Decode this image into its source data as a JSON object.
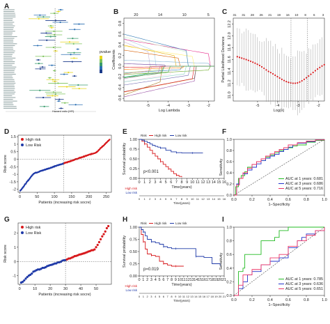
{
  "figure": {
    "panel_labels": [
      "A",
      "B",
      "C",
      "D",
      "E",
      "F",
      "G",
      "H",
      "I"
    ]
  },
  "panel_a": {
    "legend_title": "pvalue",
    "xlabel": "Hazard ratio (HR)"
  },
  "chart_data": [
    {
      "panel": "B",
      "type": "line",
      "xlabel": "Log Lambda",
      "ylabel": "Coefficients",
      "xlim": [
        -6.2,
        -1.7
      ],
      "ylim": [
        -0.65,
        0.9
      ],
      "top_ticks": [
        "20",
        "14",
        "10",
        "5"
      ],
      "x_ticks": [
        "-5",
        "-4",
        "-3",
        "-2"
      ],
      "y_ticks": [
        "-0.6",
        "-0.4",
        "-0.2",
        "0.0",
        "0.2",
        "0.4",
        "0.6",
        "0.8"
      ]
    },
    {
      "panel": "C",
      "type": "scatter",
      "xlabel": "Log(λ)",
      "ylabel": "Partial Likelihood Deviance",
      "xlim": [
        -6.2,
        -1.7
      ],
      "ylim": [
        10.9,
        12.3
      ],
      "top_ticks": [
        "31",
        "31",
        "28",
        "26",
        "21",
        "19",
        "16",
        "10",
        "8",
        "6",
        "3"
      ],
      "x_ticks": [
        "-5",
        "-4",
        "-3",
        "-2"
      ],
      "y_ticks": [
        "11.0",
        "11.2",
        "11.4",
        "11.6",
        "11.8",
        "12.0",
        "12.2"
      ],
      "vlines": [
        -3.35,
        -2.55
      ]
    },
    {
      "panel": "D",
      "type": "scatter",
      "xlabel": "Patients (increasing risk socre)",
      "ylabel": "Risk score",
      "xlim": [
        -5,
        265
      ],
      "ylim": [
        -2.2,
        1.6
      ],
      "x_ticks": [
        "0",
        "50",
        "100",
        "150",
        "200",
        "250"
      ],
      "y_ticks": [
        "-2",
        "-1.5",
        "-1",
        "-0.5",
        "0",
        "0.5",
        "1",
        "1.5"
      ],
      "cutoff_x": 127,
      "cutoff_y": 0,
      "legend": [
        "High risk",
        "Low Risk"
      ]
    },
    {
      "panel": "E",
      "type": "line",
      "xlabel": "Time(years)",
      "ylabel": "Survival probability",
      "xlim": [
        0,
        16
      ],
      "ylim": [
        0,
        1
      ],
      "x_ticks": [
        "0",
        "1",
        "2",
        "3",
        "4",
        "5",
        "6",
        "7",
        "8",
        "9",
        "10",
        "11",
        "12",
        "13",
        "14",
        "15",
        "16"
      ],
      "y_ticks": [
        "0.00",
        "0.25",
        "0.50",
        "0.75",
        "1.00"
      ],
      "legend_title": "Risk",
      "legend": [
        "High risk",
        "Low risk"
      ],
      "pvalue_text": "p<0.001",
      "series": [
        {
          "name": "High risk",
          "x": [
            0,
            0.5,
            1,
            1.5,
            2,
            2.5,
            3,
            3.5,
            4,
            4.5,
            5,
            5.5,
            6,
            6.5,
            7,
            7.5,
            8
          ],
          "y": [
            1,
            0.95,
            0.88,
            0.8,
            0.72,
            0.64,
            0.57,
            0.5,
            0.43,
            0.36,
            0.3,
            0.24,
            0.18,
            0.12,
            0.08,
            0.05,
            0.03
          ]
        },
        {
          "name": "Low risk",
          "x": [
            0,
            0.5,
            1,
            1.5,
            2,
            2.5,
            3,
            3.5,
            4,
            5,
            6,
            7,
            8,
            9,
            10,
            11,
            12
          ],
          "y": [
            1,
            0.98,
            0.95,
            0.92,
            0.88,
            0.85,
            0.82,
            0.8,
            0.78,
            0.72,
            0.68,
            0.66,
            0.65,
            0.65,
            0.65,
            0.65,
            0.65
          ]
        }
      ],
      "risk_table_x_ticks": [
        "0",
        "1",
        "2",
        "3",
        "4",
        "5",
        "6",
        "7",
        "8",
        "9",
        "10",
        "11",
        "12",
        "13",
        "14",
        "15",
        "16"
      ],
      "risk_table_xlabel": "Time(years)",
      "risk_table_labels": [
        "High risk",
        "Low risk"
      ]
    },
    {
      "panel": "F",
      "type": "line",
      "xlabel": "1−Specificity",
      "ylabel": "Sensitivity",
      "xlim": [
        0,
        1
      ],
      "ylim": [
        0,
        1
      ],
      "x_ticks": [
        "0.0",
        "0.2",
        "0.4",
        "0.6",
        "0.8",
        "1.0"
      ],
      "y_ticks": [
        "0.0",
        "0.2",
        "0.4",
        "0.6",
        "0.8",
        "1.0"
      ],
      "series": [
        {
          "name": "AUC at 1 years: 0.681",
          "x": [
            0,
            0.02,
            0.05,
            0.08,
            0.12,
            0.15,
            0.2,
            0.25,
            0.3,
            0.35,
            0.4,
            0.45,
            0.5,
            0.55,
            0.6,
            0.65,
            0.7,
            0.8,
            0.9,
            1
          ],
          "y": [
            0,
            0.15,
            0.3,
            0.35,
            0.42,
            0.5,
            0.55,
            0.6,
            0.62,
            0.68,
            0.72,
            0.76,
            0.8,
            0.82,
            0.85,
            0.88,
            0.9,
            0.95,
            0.98,
            1
          ]
        },
        {
          "name": "AUC at 3 years: 0.686",
          "x": [
            0,
            0.03,
            0.06,
            0.1,
            0.15,
            0.2,
            0.25,
            0.3,
            0.35,
            0.4,
            0.45,
            0.5,
            0.55,
            0.6,
            0.65,
            0.7,
            0.8,
            0.9,
            1
          ],
          "y": [
            0,
            0.2,
            0.3,
            0.38,
            0.45,
            0.5,
            0.56,
            0.62,
            0.66,
            0.7,
            0.73,
            0.78,
            0.82,
            0.86,
            0.9,
            0.93,
            0.96,
            0.99,
            1
          ]
        },
        {
          "name": "AUC at 5 years: 0.716",
          "x": [
            0,
            0.03,
            0.06,
            0.1,
            0.15,
            0.2,
            0.25,
            0.3,
            0.35,
            0.4,
            0.45,
            0.5,
            0.55,
            0.6,
            0.7,
            0.8,
            0.9,
            1
          ],
          "y": [
            0,
            0.18,
            0.3,
            0.4,
            0.48,
            0.55,
            0.6,
            0.65,
            0.7,
            0.74,
            0.78,
            0.82,
            0.85,
            0.9,
            0.94,
            0.97,
            0.99,
            1
          ]
        }
      ],
      "colors": [
        "#22bb22",
        "#2233cc",
        "#ee3366"
      ]
    },
    {
      "panel": "G",
      "type": "scatter",
      "xlabel": "Patients (increasing risk socre)",
      "ylabel": "Risk score",
      "xlim": [
        -1,
        60
      ],
      "ylim": [
        -1.6,
        2.7
      ],
      "x_ticks": [
        "0",
        "10",
        "20",
        "30",
        "40",
        "50"
      ],
      "y_ticks": [
        "-1",
        "0",
        "1",
        "2"
      ],
      "cutoff_x": 30,
      "cutoff_y": 0,
      "legend": [
        "High risk",
        "Low Risk"
      ]
    },
    {
      "panel": "H",
      "type": "line",
      "xlabel": "Time(years)",
      "ylabel": "Survival probability",
      "xlim": [
        0,
        21
      ],
      "ylim": [
        0,
        1
      ],
      "x_ticks": [
        "0",
        "1",
        "2",
        "3",
        "4",
        "5",
        "6",
        "7",
        "8",
        "9",
        "10",
        "11",
        "12",
        "13",
        "14",
        "15",
        "16",
        "17",
        "18",
        "19",
        "20",
        "21"
      ],
      "y_ticks": [
        "0.00",
        "0.25",
        "0.50",
        "0.75",
        "1.00"
      ],
      "legend_title": "Risk",
      "legend": [
        "High risk",
        "Low risk"
      ],
      "pvalue_text": "p=0.019",
      "series": [
        {
          "name": "High risk",
          "x": [
            0,
            0.5,
            1,
            1.5,
            2,
            3,
            4,
            5,
            6,
            7,
            8,
            9,
            10,
            11
          ],
          "y": [
            1,
            0.85,
            0.7,
            0.55,
            0.45,
            0.42,
            0.4,
            0.3,
            0.25,
            0.22,
            0.2,
            0.2,
            0.2,
            0.2
          ]
        },
        {
          "name": "Low risk",
          "x": [
            0,
            0.5,
            1,
            1.5,
            2,
            3,
            4,
            5,
            6,
            7,
            8,
            9,
            10,
            12,
            14,
            16,
            18,
            20
          ],
          "y": [
            1,
            0.95,
            0.9,
            0.82,
            0.75,
            0.7,
            0.68,
            0.65,
            0.6,
            0.58,
            0.56,
            0.56,
            0.56,
            0.56,
            0.4,
            0.38,
            0.25,
            0.22
          ]
        }
      ],
      "risk_table_x_ticks": [
        "0",
        "1",
        "2",
        "3",
        "4",
        "5",
        "6",
        "7",
        "8",
        "9",
        "10",
        "11",
        "12",
        "13",
        "14",
        "15",
        "16",
        "17",
        "18",
        "19",
        "20",
        "21"
      ],
      "risk_table_xlabel": "Time(years)",
      "risk_table_labels": [
        "High risk",
        "Low risk"
      ]
    },
    {
      "panel": "I",
      "type": "line",
      "xlabel": "1−Specificity",
      "ylabel": "Sensitivity",
      "xlim": [
        0,
        1
      ],
      "ylim": [
        0,
        1
      ],
      "x_ticks": [
        "0.0",
        "0.2",
        "0.4",
        "0.6",
        "0.8",
        "1.0"
      ],
      "y_ticks": [
        "0.0",
        "0.2",
        "0.4",
        "0.6",
        "0.8",
        "1.0"
      ],
      "series": [
        {
          "name": "AUC at 1 years: 0.785",
          "x": [
            0,
            0.05,
            0.1,
            0.12,
            0.2,
            0.28,
            0.3,
            0.4,
            0.45,
            0.5,
            0.6,
            0.7,
            0.8,
            0.9,
            1
          ],
          "y": [
            0,
            0.35,
            0.4,
            0.6,
            0.6,
            0.6,
            0.8,
            0.8,
            0.85,
            0.95,
            1,
            1,
            1,
            1,
            1
          ]
        },
        {
          "name": "AUC at 3 years: 0.636",
          "x": [
            0,
            0.05,
            0.1,
            0.15,
            0.2,
            0.3,
            0.4,
            0.5,
            0.6,
            0.7,
            0.75,
            0.8,
            0.9,
            1
          ],
          "y": [
            0,
            0.1,
            0.2,
            0.3,
            0.35,
            0.45,
            0.5,
            0.55,
            0.7,
            0.8,
            0.85,
            0.9,
            0.95,
            1
          ]
        },
        {
          "name": "AUC at 5 years: 0.651",
          "x": [
            0,
            0.05,
            0.1,
            0.2,
            0.3,
            0.4,
            0.5,
            0.6,
            0.7,
            0.8,
            0.9,
            1
          ],
          "y": [
            0,
            0.15,
            0.3,
            0.38,
            0.45,
            0.55,
            0.6,
            0.72,
            0.8,
            0.88,
            0.95,
            1
          ]
        }
      ],
      "colors": [
        "#22bb22",
        "#2233cc",
        "#ee3366"
      ]
    }
  ]
}
